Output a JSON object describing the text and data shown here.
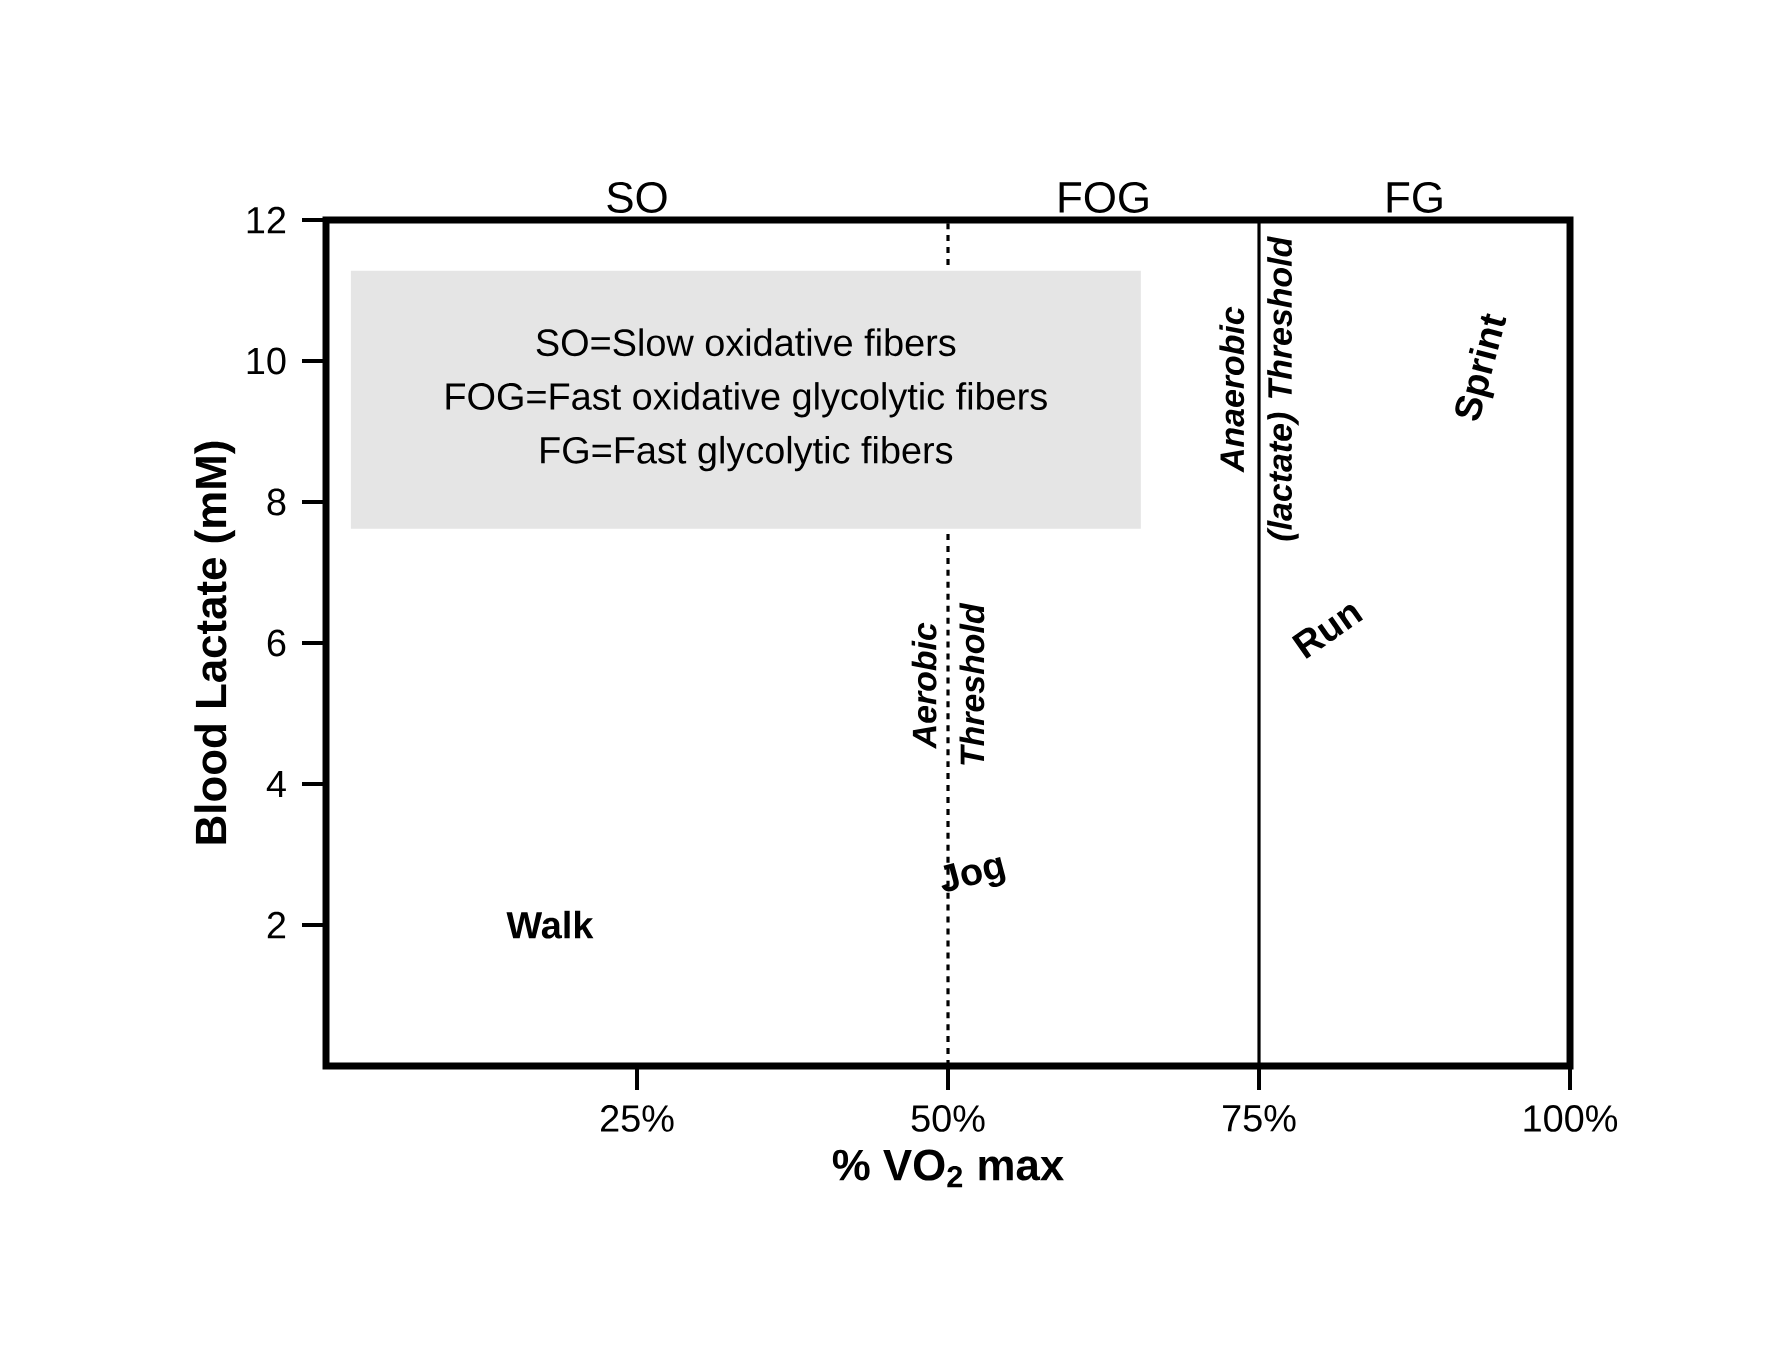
{
  "chart_data": {
    "type": "line",
    "xlabel": "% VO$_{2}$ max",
    "ylabel": "Blood Lactate (mM)",
    "xlim": [
      0,
      100
    ],
    "xticks": [
      {
        "value": 25,
        "label": "25%"
      },
      {
        "value": 50,
        "label": "50%"
      },
      {
        "value": 75,
        "label": "75%"
      },
      {
        "value": 100,
        "label": "100%"
      }
    ],
    "ylim": [
      0,
      12
    ],
    "yticks": [
      2,
      4,
      6,
      8,
      10,
      12
    ],
    "ref_lines": [
      {
        "axis": "x",
        "value": 50,
        "label": "Aerobic Threshold",
        "line_style": "dotted"
      },
      {
        "axis": "x",
        "value": 75,
        "label": "Anaerobic (lactate) Threshold",
        "line_style": "solid"
      }
    ],
    "annotations": [
      "SO",
      "FOG",
      "FG",
      "SO=Slow oxidative fibers",
      "FOG=Fast oxidative glycolytic fibers",
      "FG=Fast glycolytic fibers",
      "Walk",
      "Jog",
      "Run",
      "Sprint"
    ]
  }
}
